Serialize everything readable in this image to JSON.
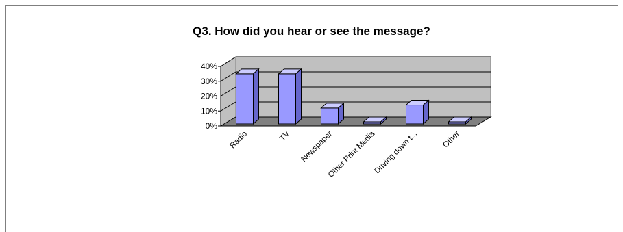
{
  "chart_data": {
    "type": "bar",
    "title": "Q3.  How did you hear or see the message?",
    "categories": [
      "Radio",
      "TV",
      "Newspaper",
      "Other Print Media",
      "Driving down t...",
      "Other"
    ],
    "values": [
      35,
      35,
      12,
      1,
      14,
      0
    ],
    "y_ticks": [
      "0%",
      "10%",
      "20%",
      "30%",
      "40%"
    ],
    "ylim": [
      0,
      40
    ],
    "ylabel": "",
    "xlabel": "",
    "grid": true,
    "legend": "none",
    "colors": {
      "bar_front": "#9999ff",
      "bar_top": "#ccccff",
      "bar_side": "#6666cc",
      "wall": "#c0c0c0",
      "floor": "#808080"
    }
  }
}
